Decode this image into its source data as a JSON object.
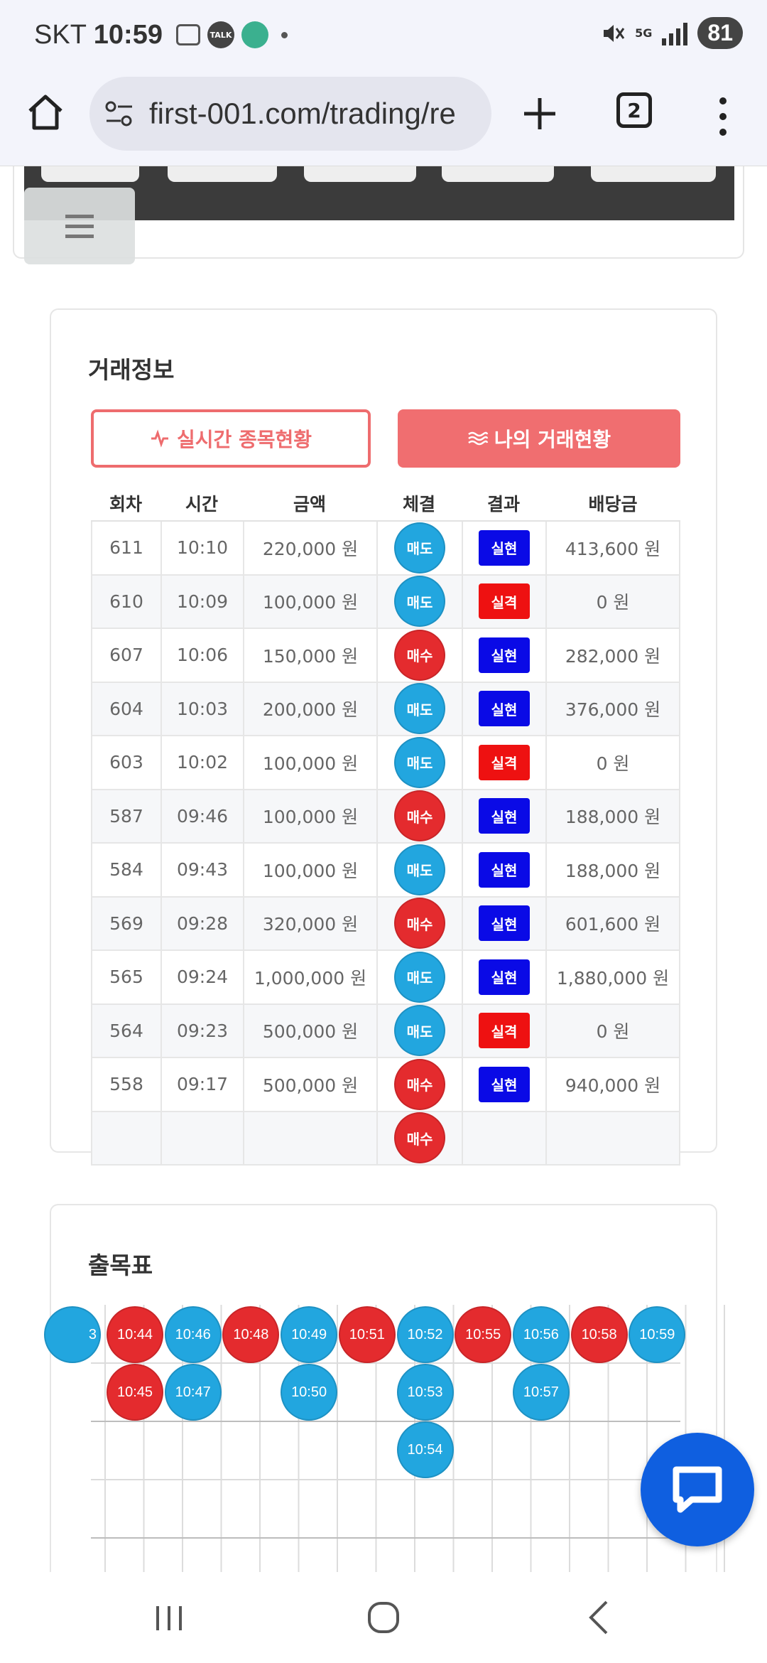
{
  "status_bar": {
    "carrier": "SKT",
    "time": "10:59",
    "talk_label": "TALK",
    "network": "5G",
    "battery": "81"
  },
  "browser": {
    "url": "first-001.com/trading/re",
    "tab_count": "2"
  },
  "trade_info": {
    "title": "거래정보",
    "live_button": "실시간 종목현황",
    "my_button": "나의 거래현황",
    "columns": [
      "회차",
      "시간",
      "금액",
      "체결",
      "결과",
      "배당금"
    ],
    "rows": [
      {
        "round": "611",
        "time": "10:10",
        "amount": "220,000 원",
        "trade": "매도",
        "result": "실현",
        "payout": "413,600 원"
      },
      {
        "round": "610",
        "time": "10:09",
        "amount": "100,000 원",
        "trade": "매도",
        "result": "실격",
        "payout": "0 원"
      },
      {
        "round": "607",
        "time": "10:06",
        "amount": "150,000 원",
        "trade": "매수",
        "result": "실현",
        "payout": "282,000 원"
      },
      {
        "round": "604",
        "time": "10:03",
        "amount": "200,000 원",
        "trade": "매도",
        "result": "실현",
        "payout": "376,000 원"
      },
      {
        "round": "603",
        "time": "10:02",
        "amount": "100,000 원",
        "trade": "매도",
        "result": "실격",
        "payout": "0 원"
      },
      {
        "round": "587",
        "time": "09:46",
        "amount": "100,000 원",
        "trade": "매수",
        "result": "실현",
        "payout": "188,000 원"
      },
      {
        "round": "584",
        "time": "09:43",
        "amount": "100,000 원",
        "trade": "매도",
        "result": "실현",
        "payout": "188,000 원"
      },
      {
        "round": "569",
        "time": "09:28",
        "amount": "320,000 원",
        "trade": "매수",
        "result": "실현",
        "payout": "601,600 원"
      },
      {
        "round": "565",
        "time": "09:24",
        "amount": "1,000,000 원",
        "trade": "매도",
        "result": "실현",
        "payout": "1,880,000 원"
      },
      {
        "round": "564",
        "time": "09:23",
        "amount": "500,000 원",
        "trade": "매도",
        "result": "실격",
        "payout": "0 원"
      },
      {
        "round": "558",
        "time": "09:17",
        "amount": "500,000 원",
        "trade": "매수",
        "result": "실현",
        "payout": "940,000 원"
      },
      {
        "round": "",
        "time": "",
        "amount": "",
        "trade": "매수",
        "result": "",
        "payout": ""
      }
    ]
  },
  "chart_table": {
    "title": "출목표",
    "partial_first": "3",
    "columns": [
      {
        "color": "red",
        "items": [
          "10:44",
          "10:45"
        ]
      },
      {
        "color": "blue",
        "items": [
          "10:46",
          "10:47"
        ]
      },
      {
        "color": "red",
        "items": [
          "10:48"
        ]
      },
      {
        "color": "blue",
        "items": [
          "10:49",
          "10:50"
        ]
      },
      {
        "color": "red",
        "items": [
          "10:51"
        ]
      },
      {
        "color": "blue",
        "items": [
          "10:52",
          "10:53",
          "10:54"
        ]
      },
      {
        "color": "red",
        "items": [
          "10:55"
        ]
      },
      {
        "color": "blue",
        "items": [
          "10:56",
          "10:57"
        ]
      },
      {
        "color": "red",
        "items": [
          "10:58"
        ]
      },
      {
        "color": "blue",
        "items": [
          "10:59"
        ]
      }
    ]
  },
  "colors": {
    "sell_blue": "#22a6df",
    "buy_red": "#e42b2e",
    "win_blue": "#0a0ae6",
    "lose_red": "#ee1111",
    "accent": "#f06e70",
    "chat": "#0f5fe0"
  }
}
